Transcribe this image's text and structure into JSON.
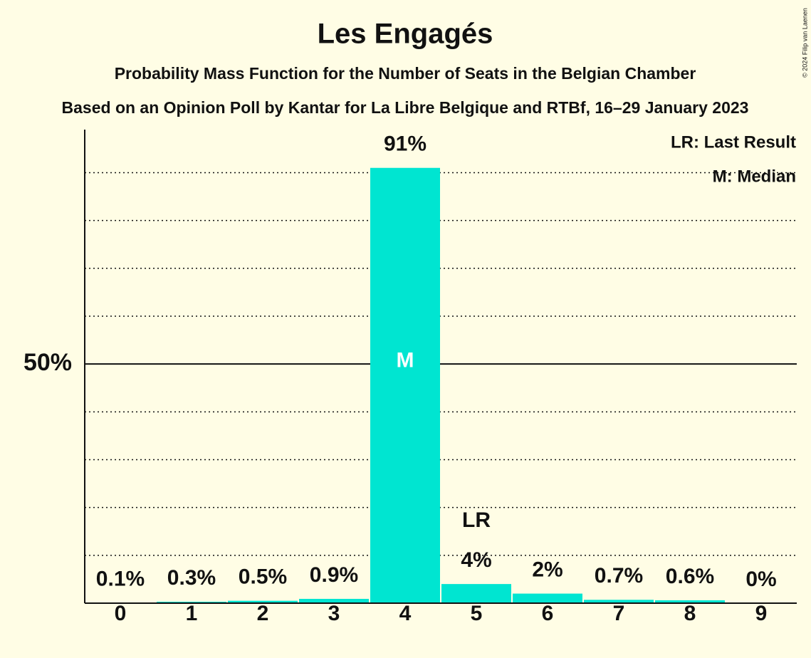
{
  "chart_data": {
    "type": "bar",
    "title": "Les Engagés",
    "subtitle": "Probability Mass Function for the Number of Seats in the Belgian Chamber",
    "subtitle2": "Based on an Opinion Poll by Kantar for La Libre Belgique and RTBf, 16–29 January 2023",
    "categories": [
      "0",
      "1",
      "2",
      "3",
      "4",
      "5",
      "6",
      "7",
      "8",
      "9"
    ],
    "values": [
      0.1,
      0.3,
      0.5,
      0.9,
      91,
      4,
      2,
      0.7,
      0.6,
      0
    ],
    "value_labels": [
      "0.1%",
      "0.3%",
      "0.5%",
      "0.9%",
      "91%",
      "4%",
      "2%",
      "0.7%",
      "0.6%",
      "0%"
    ],
    "color": "#00e5d1",
    "ylim": [
      0,
      99
    ],
    "yticks": [
      {
        "value": 50,
        "label": "50%"
      }
    ],
    "minor_yticks": [
      10,
      20,
      30,
      40,
      60,
      70,
      80,
      90
    ],
    "annotations": [
      {
        "text": "M",
        "category": 4
      },
      {
        "text": "LR",
        "category": 5
      }
    ],
    "legend": [
      "LR: Last Result",
      "M: Median"
    ],
    "copyright": "© 2024 Filip van Laenen"
  }
}
